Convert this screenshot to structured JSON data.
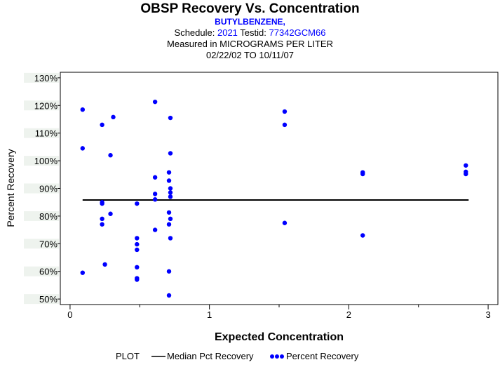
{
  "header": {
    "title": "OBSP Recovery Vs. Concentration",
    "compound": "BUTYLBENZENE,",
    "schedule_label": "Schedule:",
    "schedule_value": "2021",
    "testid_label": "Testid:",
    "testid_value": "77342GCM66",
    "measured": "Measured in  MICROGRAMS PER LITER",
    "date_range": "02/22/02 TO 10/11/07"
  },
  "legend": {
    "plot_label": "PLOT",
    "median_label": "Median Pct Recovery",
    "points_label": "Percent Recovery"
  },
  "colors": {
    "points": "#0000ff",
    "median_line": "#000000",
    "title_accent": "#0000ff"
  },
  "chart_data": {
    "type": "scatter",
    "title": "OBSP Recovery Vs. Concentration",
    "xlabel": "Expected Concentration",
    "ylabel": "Percent Recovery",
    "xlim": [
      -0.07,
      3.07
    ],
    "ylim": [
      48,
      132
    ],
    "x_ticks": [
      0,
      1,
      2,
      3
    ],
    "x_tick_labels": [
      "0",
      "1",
      "2",
      "3"
    ],
    "y_ticks": [
      50,
      60,
      70,
      80,
      90,
      100,
      110,
      120,
      130
    ],
    "y_tick_labels": [
      "50%",
      "60%",
      "70%",
      "80%",
      "90%",
      "100%",
      "110%",
      "120%",
      "130%"
    ],
    "median": {
      "name": "Median Pct Recovery",
      "value": 85.8,
      "x_range": [
        0.09,
        2.86
      ]
    },
    "series": [
      {
        "name": "Percent Recovery",
        "points": [
          [
            0.09,
            118.5
          ],
          [
            0.09,
            104.5
          ],
          [
            0.09,
            59.5
          ],
          [
            0.23,
            113
          ],
          [
            0.23,
            85
          ],
          [
            0.23,
            84.5
          ],
          [
            0.23,
            79
          ],
          [
            0.23,
            77
          ],
          [
            0.25,
            62.5
          ],
          [
            0.29,
            102
          ],
          [
            0.29,
            80.8
          ],
          [
            0.31,
            115.8
          ],
          [
            0.48,
            84.5
          ],
          [
            0.48,
            72
          ],
          [
            0.48,
            69.8
          ],
          [
            0.48,
            67.8
          ],
          [
            0.48,
            61.5
          ],
          [
            0.48,
            57.5
          ],
          [
            0.48,
            57
          ],
          [
            0.61,
            121.3
          ],
          [
            0.61,
            94
          ],
          [
            0.61,
            88
          ],
          [
            0.61,
            86
          ],
          [
            0.61,
            75
          ],
          [
            0.71,
            95.8
          ],
          [
            0.71,
            92.8
          ],
          [
            0.71,
            81.3
          ],
          [
            0.71,
            77
          ],
          [
            0.71,
            60
          ],
          [
            0.71,
            51.3
          ],
          [
            0.72,
            115.5
          ],
          [
            0.72,
            102.7
          ],
          [
            0.72,
            90
          ],
          [
            0.72,
            88.5
          ],
          [
            0.72,
            87
          ],
          [
            0.72,
            79
          ],
          [
            0.72,
            72
          ],
          [
            1.54,
            117.8
          ],
          [
            1.54,
            113
          ],
          [
            1.54,
            77.5
          ],
          [
            2.1,
            95.8
          ],
          [
            2.1,
            95.2
          ],
          [
            2.1,
            73
          ],
          [
            2.84,
            98.3
          ],
          [
            2.84,
            96
          ],
          [
            2.84,
            95.2
          ]
        ]
      }
    ]
  }
}
